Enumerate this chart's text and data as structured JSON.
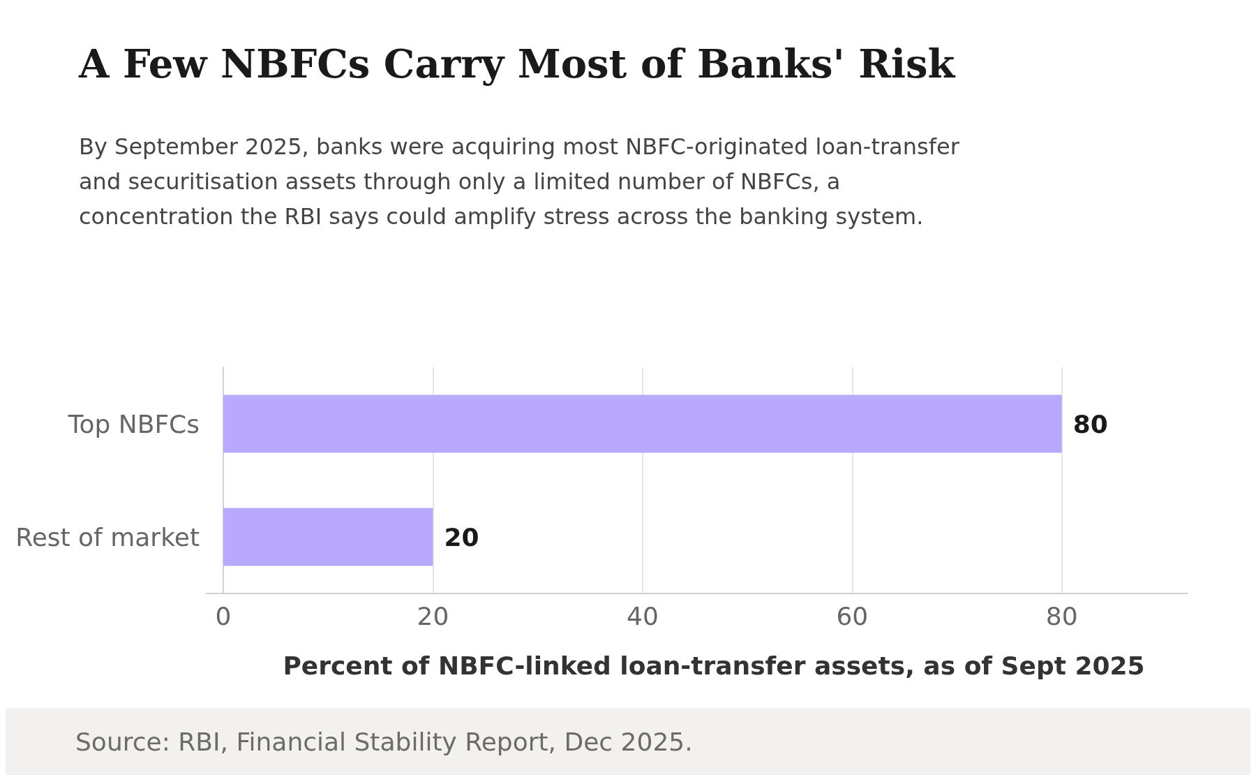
{
  "chart_data": {
    "type": "bar",
    "orientation": "horizontal",
    "title": "A Few NBFCs Carry Most of Banks' Risk",
    "subtitle": "By September 2025, banks were acquiring most NBFC-originated loan-transfer and securitisation assets through only a limited number of NBFCs, a concentration the RBI says could amplify stress across the banking system.",
    "xlabel": "Percent of NBFC-linked loan-transfer assets, as of Sept 2025",
    "annotations": [
      "Source: RBI, Financial Stability Report, Dec 2025."
    ],
    "categories": [
      "Top NBFCs",
      "Rest of market"
    ],
    "values": [
      80,
      20
    ],
    "color": "#b8a9fc",
    "xlim": [
      -1.6,
      92
    ],
    "xticks": [
      0,
      20,
      40,
      60,
      80
    ],
    "grid": "x",
    "data_labels": true
  }
}
